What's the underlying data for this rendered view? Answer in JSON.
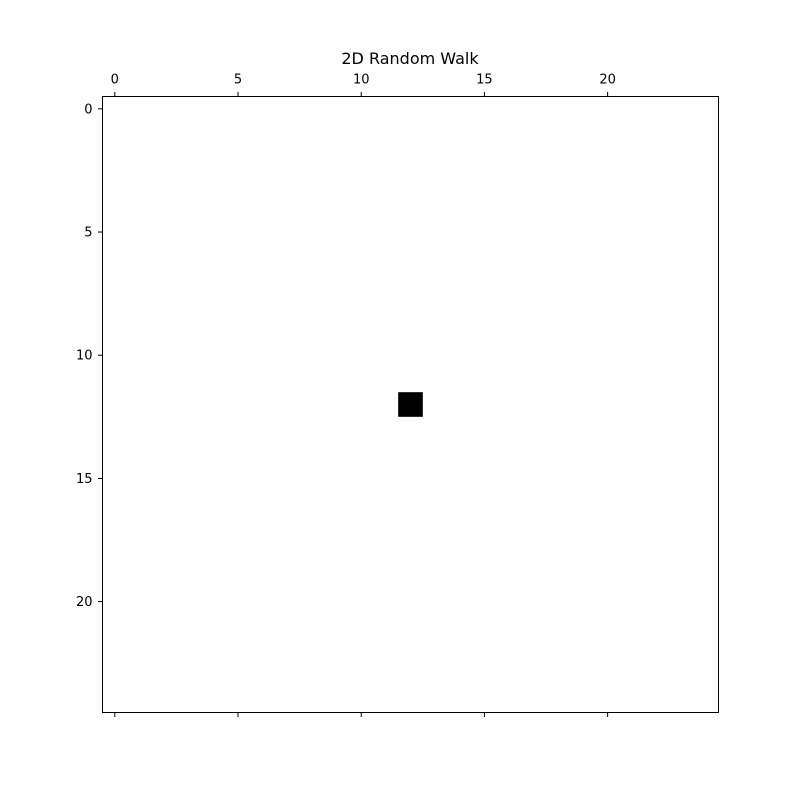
{
  "chart_data": {
    "type": "heatmap",
    "title": "2D Random Walk",
    "xlabel": "",
    "ylabel": "",
    "grid_size": [
      25,
      25
    ],
    "xlim": [
      -0.5,
      24.5
    ],
    "ylim": [
      24.5,
      -0.5
    ],
    "x_ticks": [
      0,
      5,
      10,
      15,
      20
    ],
    "y_ticks": [
      0,
      5,
      10,
      15,
      20
    ],
    "x_tick_labels": [
      "0",
      "5",
      "10",
      "15",
      "20"
    ],
    "y_tick_labels": [
      "0",
      "5",
      "10",
      "15",
      "20"
    ],
    "x_tick_labels_position": "top",
    "grid": false,
    "colormap": "gray_r",
    "background_color": "#ffffff",
    "cell_color": "#000000",
    "filled_cells": [
      {
        "row": 12,
        "col": 12,
        "value": 1
      }
    ]
  }
}
